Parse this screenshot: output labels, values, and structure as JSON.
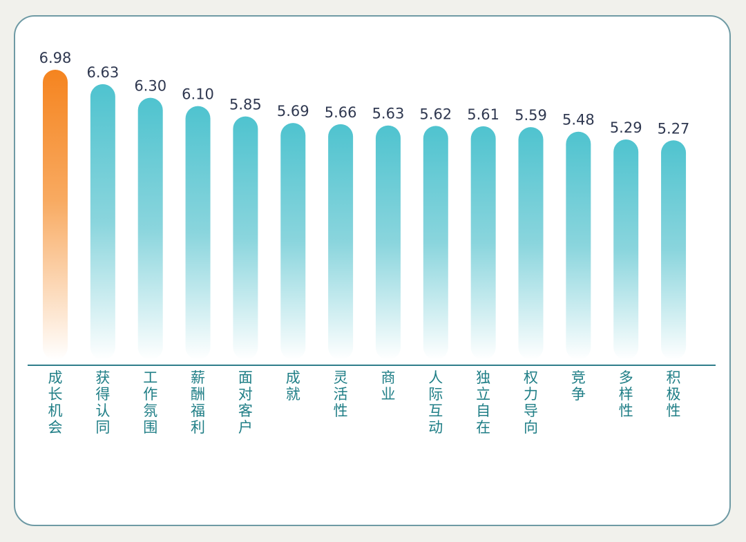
{
  "chart_data": {
    "type": "bar",
    "categories": [
      "成长机会",
      "获得认同",
      "工作氛围",
      "薪酬福利",
      "面对客户",
      "成就",
      "灵活性",
      "商业",
      "人际互动",
      "独立自在",
      "权力导向",
      "竞争",
      "多样性",
      "积极性"
    ],
    "values": [
      6.98,
      6.63,
      6.3,
      6.1,
      5.85,
      5.69,
      5.66,
      5.63,
      5.62,
      5.61,
      5.59,
      5.48,
      5.29,
      5.27
    ],
    "value_labels": [
      "6.98",
      "6.63",
      "6.30",
      "6.10",
      "5.85",
      "5.69",
      "5.66",
      "5.63",
      "5.62",
      "5.61",
      "5.59",
      "5.48",
      "5.29",
      "5.27"
    ],
    "title": "",
    "xlabel": "",
    "ylabel": "",
    "grid": false,
    "legend": "none",
    "highlight_index": 0,
    "colors": {
      "highlight_top": "#f5841f",
      "highlight_bottom": "#ffffff",
      "bar_top": "#4fc3cf",
      "bar_bottom": "#ffffff",
      "axis": "#2e7d8a",
      "value_text": "#2f3850",
      "category_text": "#1f7e86"
    }
  }
}
